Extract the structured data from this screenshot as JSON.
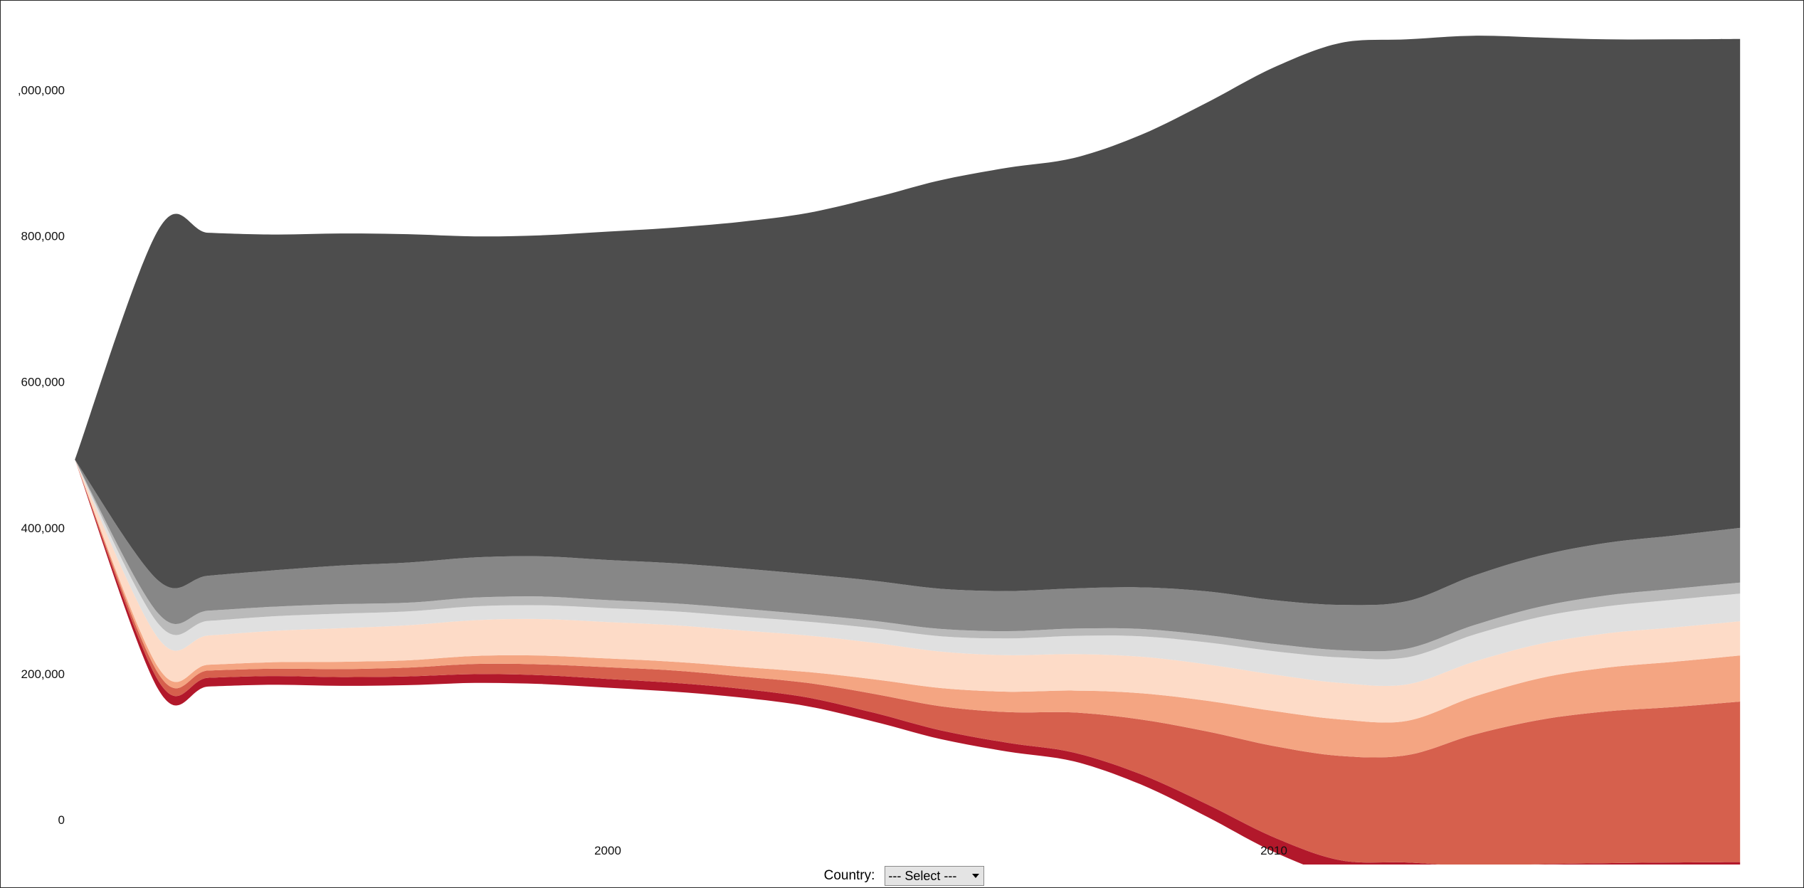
{
  "chart_data": {
    "type": "area",
    "stacked": true,
    "offset": "wiggle",
    "grid": false,
    "legend": "none",
    "y_tick_labels": [
      ",000,000",
      "800,000",
      "600,000",
      "400,000",
      "200,000",
      "0"
    ],
    "y_ticks": [
      1000000,
      800000,
      600000,
      400000,
      200000,
      0
    ],
    "x_tick_labels": [
      "2000",
      "2010"
    ],
    "x_ticks": [
      2000,
      2010
    ],
    "xlim": [
      1992,
      2017
    ],
    "ylim": [
      0,
      1100000
    ],
    "x": [
      1992,
      1993.25,
      1994,
      1995,
      1996,
      1997,
      1998,
      1999,
      2000,
      2001,
      2002,
      2003,
      2004,
      2005,
      2006,
      2007,
      2008,
      2009,
      2010,
      2011,
      2012,
      2013,
      2014,
      2015,
      2016,
      2017
    ],
    "colors": [
      "#b2182b",
      "#d6604d",
      "#f4a582",
      "#fddbc7",
      "#e0e0e0",
      "#bababa",
      "#878787",
      "#4d4d4d"
    ],
    "series": [
      {
        "values": [
          0,
          12000,
          12000,
          12000,
          12000,
          12000,
          12000,
          12000,
          12000,
          12000,
          12000,
          12000,
          12000,
          12000,
          12000,
          12000,
          14000,
          17000,
          20000,
          22000,
          24000,
          24000,
          24000,
          23000,
          24000,
          25000
        ]
      },
      {
        "values": [
          0,
          10000,
          10000,
          10000,
          11000,
          12000,
          14000,
          15000,
          16000,
          17000,
          17000,
          20000,
          26000,
          33000,
          42000,
          55000,
          75000,
          100000,
          125000,
          143000,
          147000,
          180000,
          198000,
          208000,
          213000,
          220000
        ]
      },
      {
        "values": [
          0,
          8000,
          8000,
          9000,
          10000,
          10000,
          11000,
          12000,
          12000,
          12000,
          13000,
          15000,
          20000,
          25000,
          28000,
          30000,
          36000,
          42000,
          48000,
          50000,
          47000,
          52000,
          57000,
          60000,
          62000,
          63000
        ]
      },
      {
        "values": [
          0,
          40000,
          40000,
          43000,
          46000,
          48000,
          49000,
          50000,
          50000,
          50000,
          50000,
          50000,
          50000,
          50000,
          50000,
          50000,
          50000,
          50000,
          50000,
          50000,
          50000,
          48000,
          47000,
          47000,
          47000,
          47000
        ]
      },
      {
        "values": [
          0,
          20000,
          20000,
          20000,
          20000,
          19000,
          19000,
          19000,
          19000,
          19000,
          19000,
          19000,
          20000,
          21000,
          23000,
          25000,
          28000,
          30000,
          32000,
          35000,
          37000,
          37000,
          37000,
          37000,
          38000,
          38000
        ]
      },
      {
        "values": [
          0,
          14000,
          14000,
          13000,
          13000,
          12000,
          12000,
          12000,
          11000,
          11000,
          11000,
          10000,
          10000,
          10000,
          10000,
          10000,
          10000,
          10000,
          10000,
          10000,
          12000,
          13000,
          14000,
          15000,
          15000,
          15000
        ]
      },
      {
        "values": [
          0,
          45000,
          48000,
          50000,
          53000,
          55000,
          55000,
          55000,
          55000,
          55000,
          55000,
          55000,
          55000,
          55000,
          55000,
          55000,
          57000,
          60000,
          60000,
          62000,
          65000,
          68000,
          70000,
          72000,
          73000,
          75000
        ]
      },
      {
        "values": [
          0,
          480000,
          470000,
          460000,
          455000,
          450000,
          440000,
          440000,
          450000,
          460000,
          475000,
          495000,
          525000,
          560000,
          580000,
          590000,
          620000,
          670000,
          730000,
          770000,
          770000,
          740000,
          710000,
          690000,
          680000,
          670000
        ]
      }
    ]
  },
  "controls": {
    "country_label": "Country:",
    "country_select_value": "--- Select ---"
  }
}
